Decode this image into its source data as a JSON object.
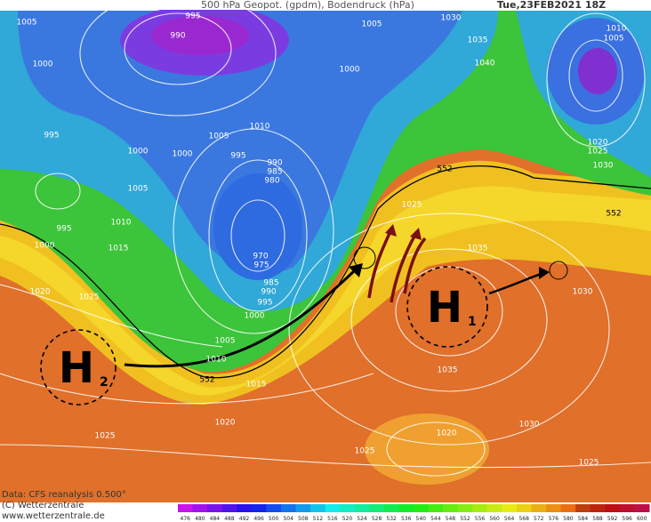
{
  "header": {
    "title": "500 hPa Geopot. (gpdm), Bodendruck (hPa)",
    "date": "Tue,23FEB2021 18Z"
  },
  "map": {
    "isobar_labels": [
      995,
      990,
      1005,
      1000,
      995,
      1000,
      1005,
      1000,
      1005,
      1010,
      995,
      990,
      985,
      980,
      970,
      975,
      985,
      990,
      995,
      1000,
      1005,
      1010,
      1015,
      1020,
      1025,
      1025,
      1020,
      1030,
      1025,
      1035,
      1035,
      1030,
      1025,
      1010,
      1015,
      995,
      1000,
      1020,
      1025,
      1005,
      1030,
      1035,
      1040,
      1000,
      1010,
      1005,
      1020,
      1025,
      1030
    ],
    "contour_labels": [
      552,
      552,
      552
    ],
    "highs": [
      {
        "letter": "H",
        "index": "1"
      },
      {
        "letter": "H",
        "index": "2"
      }
    ]
  },
  "footer": {
    "source": "Data: CFS reanalysis 0.500°",
    "copyright": "(C) Wetterzentrale",
    "url": "www.wetterzentrale.de"
  },
  "legend": {
    "values": [
      476,
      480,
      484,
      488,
      492,
      496,
      500,
      504,
      508,
      512,
      516,
      520,
      524,
      528,
      532,
      536,
      540,
      544,
      548,
      552,
      556,
      560,
      564,
      568,
      572,
      576,
      580,
      584,
      588,
      592,
      596,
      600
    ]
  }
}
